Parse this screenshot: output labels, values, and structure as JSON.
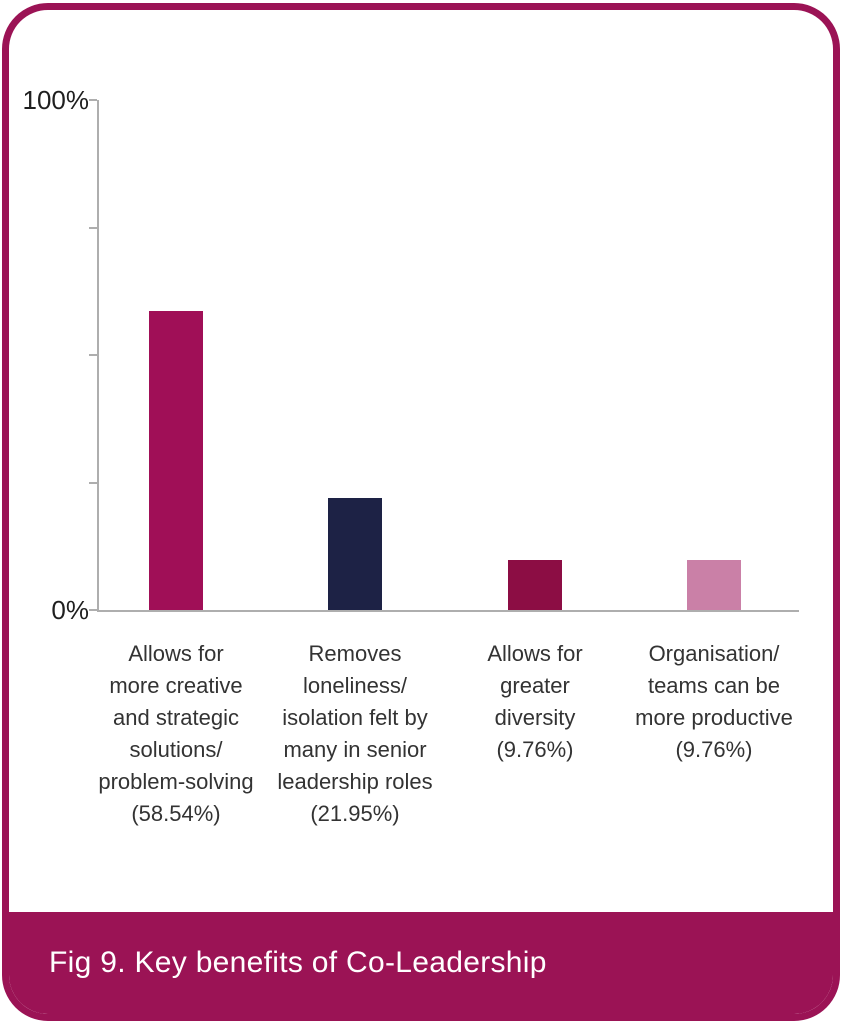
{
  "page": {
    "background": "#ffffff"
  },
  "card": {
    "border_color": "#9b1355",
    "background": "#ffffff"
  },
  "footer": {
    "caption": "Fig 9. Key benefits of Co-Leadership",
    "background": "#9b1355",
    "text_color": "#ffffff"
  },
  "chart_data": {
    "type": "bar",
    "title": "Fig 9. Key benefits of Co-Leadership",
    "xlabel": "",
    "ylabel": "",
    "ylim": [
      0,
      100
    ],
    "grid": false,
    "legend": false,
    "axis_color": "#aeaeae",
    "label_text_color": "#333333",
    "tick_text_color": "#1f1f1f",
    "yticks": [
      {
        "value": 100,
        "label": "100%"
      },
      {
        "value": 75,
        "label": ""
      },
      {
        "value": 50,
        "label": ""
      },
      {
        "value": 25,
        "label": ""
      },
      {
        "value": 0,
        "label": "0%"
      }
    ],
    "categories": [
      "Allows for more creative and strategic solutions/problem-solving (58.54%)",
      "Removes loneliness/isolation felt by many in senior leadership roles (21.95%)",
      "Allows for greater diversity (9.76%)",
      "Organisation/teams can be more productive (9.76%)"
    ],
    "values": [
      58.54,
      21.95,
      9.76,
      9.76
    ],
    "bars": [
      {
        "value": 58.54,
        "color": "#a00f57",
        "label_lines": [
          "Allows for",
          "more creative",
          "and strategic",
          "solutions/",
          "problem-solving",
          "(58.54%)"
        ]
      },
      {
        "value": 21.95,
        "color": "#1d2245",
        "label_lines": [
          "Removes",
          "loneliness/",
          "isolation felt by",
          "many in senior",
          "leadership roles",
          "(21.95%)"
        ]
      },
      {
        "value": 9.76,
        "color": "#8c0d44",
        "label_lines": [
          "Allows for",
          "greater",
          "diversity",
          "(9.76%)"
        ]
      },
      {
        "value": 9.76,
        "color": "#ca80a7",
        "label_lines": [
          "Organisation/",
          "teams can be",
          "more productive",
          "(9.76%)"
        ]
      }
    ]
  }
}
